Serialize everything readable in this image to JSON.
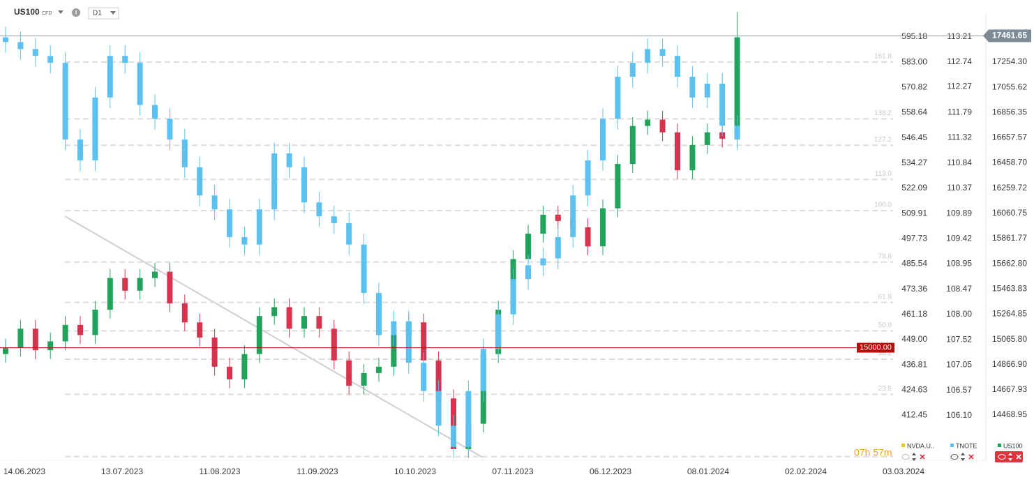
{
  "header": {
    "symbol": "US100",
    "instrument_type": "CFD",
    "timeframe": "D1"
  },
  "chart_data": {
    "type": "candlestick",
    "series": [
      {
        "name": "US100",
        "up_color": "#22a35c",
        "down_color": "#d6334f",
        "open": [
          14950,
          15000,
          15150,
          14980,
          15050,
          15180,
          15100,
          15300,
          15550,
          15450,
          15550,
          15600,
          15350,
          15200,
          15080,
          14850,
          14750,
          14950,
          15250,
          15320,
          15150,
          15250,
          15150,
          14900,
          14700,
          14800,
          14850,
          15100,
          15200,
          14900,
          14600,
          14200,
          14400,
          14950,
          15300,
          15700,
          15900,
          16050,
          16000,
          15950,
          15800,
          16100,
          16450,
          16750,
          16800,
          16700,
          16400,
          16600,
          16700,
          16650
        ],
        "high": [
          15070,
          15220,
          15220,
          15120,
          15250,
          15250,
          15370,
          15620,
          15620,
          15620,
          15670,
          15670,
          15420,
          15270,
          15150,
          14920,
          15020,
          15320,
          15390,
          15390,
          15320,
          15320,
          15220,
          14970,
          14870,
          14920,
          15170,
          15270,
          15270,
          14970,
          14670,
          14470,
          15020,
          15370,
          15770,
          15970,
          16120,
          16120,
          16070,
          16020,
          16170,
          16520,
          16820,
          16870,
          16870,
          16770,
          16670,
          16770,
          16770,
          17650
        ],
        "low": [
          14880,
          14930,
          14910,
          14910,
          14980,
          15030,
          15030,
          15230,
          15380,
          15380,
          15480,
          15280,
          15130,
          15010,
          14780,
          14680,
          14680,
          14880,
          15180,
          15080,
          15080,
          15080,
          14830,
          14630,
          14630,
          14730,
          14780,
          15030,
          14830,
          14530,
          14130,
          14130,
          14330,
          14880,
          15230,
          15630,
          15830,
          15930,
          15880,
          15730,
          15730,
          16030,
          16380,
          16680,
          16630,
          16330,
          16330,
          16530,
          16580,
          16580
        ],
        "close": [
          15000,
          15150,
          14980,
          15050,
          15180,
          15100,
          15300,
          15550,
          15450,
          15550,
          15600,
          15350,
          15200,
          15080,
          14850,
          14750,
          14950,
          15250,
          15320,
          15150,
          15250,
          15150,
          14900,
          14700,
          14800,
          14850,
          15100,
          15200,
          14900,
          14600,
          14200,
          14400,
          14950,
          15300,
          15700,
          15900,
          16050,
          16000,
          15950,
          15800,
          16100,
          16450,
          16750,
          16800,
          16700,
          16400,
          16600,
          16700,
          16650,
          17450
        ]
      },
      {
        "name": "TNOTE",
        "color": "#5cc1ef",
        "axis": "y2",
        "open": [
          113.2,
          113.11,
          112.98,
          112.85,
          112.72,
          111.28,
          110.89,
          112.07,
          112.85,
          112.72,
          111.93,
          111.67,
          111.28,
          110.76,
          110.23,
          109.97,
          109.45,
          109.31,
          109.97,
          111.02,
          110.76,
          110.1,
          109.84,
          109.71,
          109.31,
          108.4,
          107.61,
          107.87,
          107.09,
          106.56,
          105.91,
          105.51,
          106.56,
          107.35,
          108.0,
          108.66,
          108.92,
          109.05,
          109.45,
          110.23,
          110.89,
          111.67,
          112.46,
          112.72,
          112.98,
          112.85,
          112.46,
          112.07,
          112.33,
          111.54
        ],
        "high": [
          113.4,
          113.31,
          113.18,
          113.05,
          112.92,
          111.48,
          112.27,
          113.05,
          113.05,
          112.92,
          112.13,
          111.87,
          111.48,
          110.96,
          110.43,
          110.17,
          109.65,
          110.17,
          111.22,
          111.22,
          110.96,
          110.3,
          110.04,
          109.91,
          109.51,
          108.6,
          108.07,
          108.07,
          107.29,
          106.76,
          106.11,
          106.76,
          107.55,
          108.2,
          108.86,
          109.12,
          109.25,
          109.65,
          110.43,
          111.09,
          111.87,
          112.66,
          112.92,
          113.18,
          113.18,
          113.05,
          112.66,
          112.53,
          112.53,
          111.74
        ],
        "low": [
          112.91,
          112.78,
          112.65,
          112.52,
          111.08,
          110.69,
          110.69,
          111.87,
          112.52,
          111.73,
          111.47,
          111.08,
          110.56,
          110.03,
          109.77,
          109.25,
          109.11,
          109.11,
          109.77,
          110.56,
          109.9,
          109.64,
          109.51,
          109.11,
          108.2,
          107.41,
          107.41,
          106.89,
          106.36,
          105.71,
          105.31,
          105.31,
          106.36,
          107.15,
          107.8,
          108.46,
          108.72,
          108.85,
          109.25,
          110.03,
          110.69,
          111.47,
          112.26,
          112.52,
          112.65,
          112.26,
          111.87,
          111.87,
          111.34,
          111.08
        ],
        "close": [
          113.11,
          112.98,
          112.85,
          112.72,
          111.28,
          110.89,
          112.07,
          112.85,
          112.72,
          111.93,
          111.67,
          111.28,
          110.76,
          110.23,
          109.97,
          109.45,
          109.31,
          109.97,
          111.02,
          110.76,
          110.1,
          109.84,
          109.71,
          109.31,
          108.4,
          107.61,
          107.87,
          107.09,
          106.56,
          105.91,
          105.51,
          106.56,
          107.35,
          108.0,
          108.66,
          108.92,
          109.05,
          109.45,
          110.23,
          110.89,
          111.67,
          112.46,
          112.72,
          112.98,
          112.85,
          112.46,
          112.07,
          112.33,
          111.54,
          111.28
        ]
      }
    ],
    "overlays": [
      {
        "name": "NVDA.U..",
        "color": "#f5c518"
      }
    ],
    "xtick_labels": [
      "14.06.2023",
      "13.07.2023",
      "11.08.2023",
      "11.09.2023",
      "10.10.2023",
      "07.11.2023",
      "06.12.2023",
      "08.01.2024",
      "02.02.2024",
      "03.03.2024"
    ],
    "ylim": [
      14111.5,
      17744.2
    ],
    "yticks": [
      {
        "value": 17254.3,
        "label": "17254.30"
      },
      {
        "value": 17055.62,
        "label": "17055.62"
      },
      {
        "value": 16856.35,
        "label": "16856.35"
      },
      {
        "value": 16657.57,
        "label": "16657.57"
      },
      {
        "value": 16458.7,
        "label": "16458.70"
      },
      {
        "value": 16259.72,
        "label": "16259.72"
      },
      {
        "value": 16060.75,
        "label": "16060.75"
      },
      {
        "value": 15861.77,
        "label": "15861.77"
      },
      {
        "value": 15662.8,
        "label": "15662.80"
      },
      {
        "value": 15463.83,
        "label": "15463.83"
      },
      {
        "value": 15264.85,
        "label": "15264.85"
      },
      {
        "value": 15065.8,
        "label": "15065.80"
      },
      {
        "value": 14866.9,
        "label": "14866.90"
      },
      {
        "value": 14667.93,
        "label": "14667.93"
      },
      {
        "value": 14468.95,
        "label": "14468.95"
      }
    ],
    "y2lim": [
      105.26,
      113.9
    ],
    "y2ticks": [
      113.21,
      112.74,
      112.27,
      111.79,
      111.32,
      110.84,
      110.37,
      109.89,
      109.42,
      108.95,
      108.47,
      {
        "value": 108,
        "label": "108.00"
      },
      107.52,
      107.05,
      106.57,
      {
        "value": 106.1,
        "label": "106.10"
      }
    ],
    "y3lim": [
      390.68,
      613.04
    ],
    "y3ticks": [
      595.18,
      {
        "value": 583,
        "label": "583.00"
      },
      570.82,
      558.64,
      546.45,
      534.27,
      522.09,
      509.91,
      497.73,
      485.54,
      473.36,
      461.18,
      {
        "value": 449,
        "label": "449.00"
      },
      436.81,
      424.63,
      412.45
    ],
    "last_price": 17461.65,
    "price_line": {
      "value": 15000,
      "label": "15000.00",
      "color": "#b80d0d"
    },
    "fibonacci_levels": [
      161.8,
      138.2,
      127.2,
      {
        "value": 113,
        "label": "113.0"
      },
      {
        "value": 100,
        "label": "100.0"
      },
      78.6,
      61.8,
      {
        "value": 50,
        "label": "50.0"
      },
      38.2,
      23.6
    ],
    "countdown": "07h 57m"
  }
}
